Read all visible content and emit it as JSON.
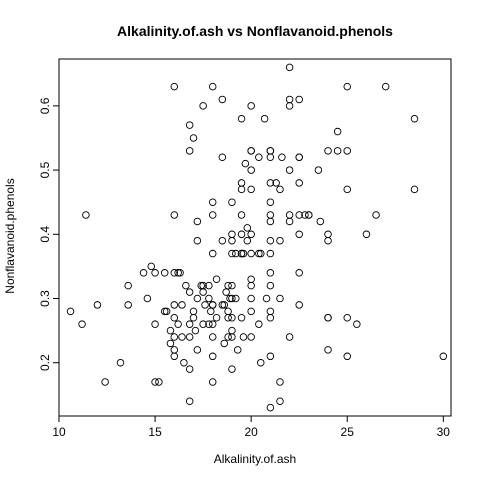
{
  "chart_data": {
    "type": "scatter",
    "title": "Alkalinity.of.ash vs Nonflavanoid.phenols",
    "xlabel": "Alkalinity.of.ash",
    "ylabel": "Nonflavanoid.phenols",
    "xlim": [
      10.0,
      30.4
    ],
    "ylim": [
      0.117,
      0.673
    ],
    "xticks": [
      10,
      15,
      20,
      25,
      30
    ],
    "yticks": [
      0.2,
      0.3,
      0.4,
      0.5,
      0.6
    ],
    "grid": false,
    "legend": "none",
    "points": [
      [
        10.6,
        0.28
      ],
      [
        11.2,
        0.26
      ],
      [
        11.4,
        0.43
      ],
      [
        12.0,
        0.29
      ],
      [
        12.4,
        0.17
      ],
      [
        13.2,
        0.2
      ],
      [
        13.6,
        0.32
      ],
      [
        13.6,
        0.29
      ],
      [
        14.4,
        0.34
      ],
      [
        14.6,
        0.3
      ],
      [
        14.8,
        0.35
      ],
      [
        15.0,
        0.34
      ],
      [
        15.0,
        0.26
      ],
      [
        15.0,
        0.17
      ],
      [
        15.2,
        0.17
      ],
      [
        15.5,
        0.34
      ],
      [
        15.5,
        0.28
      ],
      [
        15.6,
        0.28
      ],
      [
        15.8,
        0.23
      ],
      [
        15.8,
        0.25
      ],
      [
        16.0,
        0.63
      ],
      [
        16.0,
        0.43
      ],
      [
        16.0,
        0.34
      ],
      [
        16.0,
        0.29
      ],
      [
        16.0,
        0.27
      ],
      [
        16.0,
        0.24
      ],
      [
        16.0,
        0.22
      ],
      [
        16.0,
        0.21
      ],
      [
        16.2,
        0.34
      ],
      [
        16.2,
        0.26
      ],
      [
        16.3,
        0.34
      ],
      [
        16.4,
        0.29
      ],
      [
        16.4,
        0.24
      ],
      [
        16.5,
        0.2
      ],
      [
        16.6,
        0.32
      ],
      [
        16.8,
        0.57
      ],
      [
        16.8,
        0.53
      ],
      [
        16.8,
        0.31
      ],
      [
        16.8,
        0.26
      ],
      [
        16.8,
        0.24
      ],
      [
        16.8,
        0.19
      ],
      [
        16.8,
        0.14
      ],
      [
        17.0,
        0.55
      ],
      [
        17.0,
        0.28
      ],
      [
        17.0,
        0.27
      ],
      [
        17.1,
        0.25
      ],
      [
        17.2,
        0.42
      ],
      [
        17.2,
        0.39
      ],
      [
        17.2,
        0.3
      ],
      [
        17.2,
        0.22
      ],
      [
        17.4,
        0.32
      ],
      [
        17.5,
        0.32
      ],
      [
        17.5,
        0.31
      ],
      [
        17.5,
        0.26
      ],
      [
        17.5,
        0.6
      ],
      [
        17.6,
        0.29
      ],
      [
        17.8,
        0.32
      ],
      [
        17.8,
        0.3
      ],
      [
        17.8,
        0.26
      ],
      [
        17.9,
        0.28
      ],
      [
        18.0,
        0.63
      ],
      [
        18.0,
        0.45
      ],
      [
        18.0,
        0.43
      ],
      [
        18.0,
        0.37
      ],
      [
        18.0,
        0.29
      ],
      [
        18.0,
        0.29
      ],
      [
        18.0,
        0.26
      ],
      [
        18.0,
        0.24
      ],
      [
        18.0,
        0.21
      ],
      [
        18.0,
        0.17
      ],
      [
        18.2,
        0.33
      ],
      [
        18.2,
        0.27
      ],
      [
        18.5,
        0.61
      ],
      [
        18.5,
        0.52
      ],
      [
        18.5,
        0.39
      ],
      [
        18.5,
        0.29
      ],
      [
        18.6,
        0.29
      ],
      [
        18.6,
        0.23
      ],
      [
        18.7,
        0.31
      ],
      [
        18.8,
        0.32
      ],
      [
        18.8,
        0.28
      ],
      [
        18.8,
        0.27
      ],
      [
        18.8,
        0.24
      ],
      [
        18.9,
        0.3
      ],
      [
        19.0,
        0.45
      ],
      [
        19.0,
        0.4
      ],
      [
        19.0,
        0.39
      ],
      [
        19.0,
        0.37
      ],
      [
        19.0,
        0.32
      ],
      [
        19.0,
        0.3
      ],
      [
        19.0,
        0.27
      ],
      [
        19.0,
        0.25
      ],
      [
        19.0,
        0.24
      ],
      [
        19.0,
        0.19
      ],
      [
        19.2,
        0.37
      ],
      [
        19.2,
        0.3
      ],
      [
        19.3,
        0.22
      ],
      [
        19.5,
        0.58
      ],
      [
        19.5,
        0.48
      ],
      [
        19.5,
        0.47
      ],
      [
        19.5,
        0.43
      ],
      [
        19.5,
        0.4
      ],
      [
        19.5,
        0.37
      ],
      [
        19.5,
        0.37
      ],
      [
        19.5,
        0.27
      ],
      [
        19.6,
        0.37
      ],
      [
        19.6,
        0.24
      ],
      [
        19.7,
        0.51
      ],
      [
        19.8,
        0.41
      ],
      [
        19.8,
        0.39
      ],
      [
        20.0,
        0.6
      ],
      [
        20.0,
        0.53
      ],
      [
        20.0,
        0.53
      ],
      [
        20.0,
        0.5
      ],
      [
        20.0,
        0.47
      ],
      [
        20.0,
        0.4
      ],
      [
        20.0,
        0.37
      ],
      [
        20.0,
        0.33
      ],
      [
        20.0,
        0.32
      ],
      [
        20.0,
        0.3
      ],
      [
        20.0,
        0.28
      ],
      [
        20.0,
        0.24
      ],
      [
        20.4,
        0.52
      ],
      [
        20.4,
        0.37
      ],
      [
        20.4,
        0.26
      ],
      [
        20.5,
        0.2
      ],
      [
        20.5,
        0.37
      ],
      [
        20.7,
        0.58
      ],
      [
        20.8,
        0.3
      ],
      [
        21.0,
        0.53
      ],
      [
        21.0,
        0.53
      ],
      [
        21.0,
        0.52
      ],
      [
        21.0,
        0.48
      ],
      [
        21.0,
        0.45
      ],
      [
        21.0,
        0.43
      ],
      [
        21.0,
        0.42
      ],
      [
        21.0,
        0.39
      ],
      [
        21.0,
        0.37
      ],
      [
        21.0,
        0.34
      ],
      [
        21.0,
        0.32
      ],
      [
        21.0,
        0.28
      ],
      [
        21.0,
        0.27
      ],
      [
        21.0,
        0.21
      ],
      [
        21.0,
        0.13
      ],
      [
        21.3,
        0.48
      ],
      [
        21.5,
        0.47
      ],
      [
        21.5,
        0.39
      ],
      [
        21.5,
        0.3
      ],
      [
        21.5,
        0.17
      ],
      [
        21.5,
        0.14
      ],
      [
        21.6,
        0.52
      ],
      [
        22.0,
        0.66
      ],
      [
        22.0,
        0.61
      ],
      [
        22.0,
        0.6
      ],
      [
        22.0,
        0.5
      ],
      [
        22.0,
        0.43
      ],
      [
        22.0,
        0.42
      ],
      [
        22.0,
        0.24
      ],
      [
        22.5,
        0.61
      ],
      [
        22.5,
        0.52
      ],
      [
        22.5,
        0.52
      ],
      [
        22.5,
        0.48
      ],
      [
        22.5,
        0.43
      ],
      [
        22.5,
        0.4
      ],
      [
        22.5,
        0.34
      ],
      [
        22.5,
        0.29
      ],
      [
        22.8,
        0.43
      ],
      [
        23.0,
        0.43
      ],
      [
        23.0,
        0.43
      ],
      [
        23.5,
        0.5
      ],
      [
        23.6,
        0.42
      ],
      [
        24.0,
        0.53
      ],
      [
        24.0,
        0.4
      ],
      [
        24.0,
        0.39
      ],
      [
        24.0,
        0.27
      ],
      [
        24.0,
        0.27
      ],
      [
        24.0,
        0.22
      ],
      [
        24.5,
        0.56
      ],
      [
        24.5,
        0.53
      ],
      [
        25.0,
        0.63
      ],
      [
        25.0,
        0.53
      ],
      [
        25.0,
        0.47
      ],
      [
        25.0,
        0.27
      ],
      [
        25.0,
        0.21
      ],
      [
        25.5,
        0.26
      ],
      [
        26.0,
        0.4
      ],
      [
        26.5,
        0.43
      ],
      [
        27.0,
        0.63
      ],
      [
        28.5,
        0.58
      ],
      [
        28.5,
        0.47
      ],
      [
        30.0,
        0.21
      ]
    ]
  }
}
